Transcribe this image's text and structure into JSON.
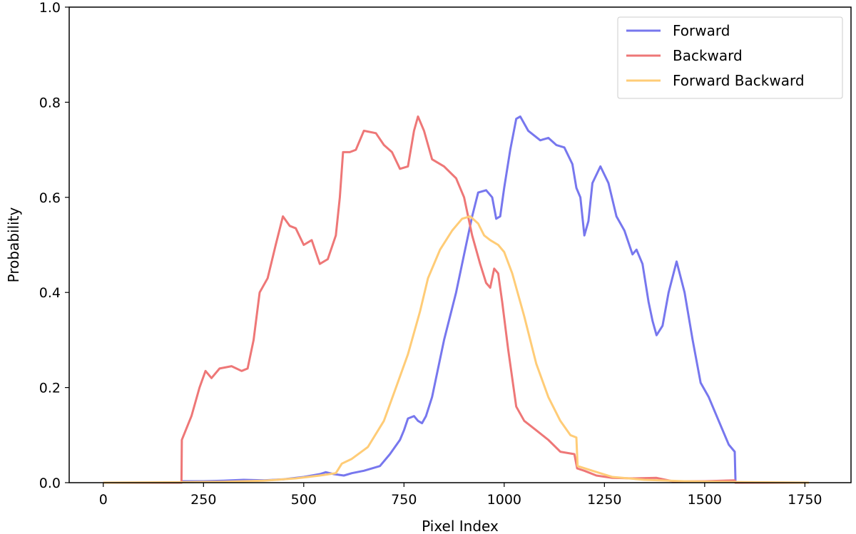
{
  "chart_data": {
    "type": "line",
    "title": "",
    "xlabel": "Pixel Index",
    "ylabel": "Probability",
    "xlim": [
      -85,
      1865
    ],
    "ylim": [
      0,
      1.0
    ],
    "xticks": [
      0,
      250,
      500,
      750,
      1000,
      1250,
      1500,
      1750
    ],
    "yticks": [
      0.0,
      0.2,
      0.4,
      0.6,
      0.8,
      1.0
    ],
    "xtick_labels": [
      "0",
      "250",
      "500",
      "750",
      "1000",
      "1250",
      "1500",
      "1750"
    ],
    "ytick_labels": [
      "0.0",
      "0.2",
      "0.4",
      "0.6",
      "0.8",
      "1.0"
    ],
    "grid": false,
    "legend_position": "top-right",
    "series": [
      {
        "name": "Forward",
        "color": "#7777ee",
        "points": [
          [
            0,
            0.0
          ],
          [
            195,
            0.0
          ],
          [
            196,
            0.003
          ],
          [
            250,
            0.003
          ],
          [
            300,
            0.004
          ],
          [
            350,
            0.006
          ],
          [
            400,
            0.005
          ],
          [
            450,
            0.007
          ],
          [
            500,
            0.012
          ],
          [
            540,
            0.018
          ],
          [
            555,
            0.022
          ],
          [
            575,
            0.018
          ],
          [
            600,
            0.015
          ],
          [
            620,
            0.02
          ],
          [
            650,
            0.025
          ],
          [
            690,
            0.035
          ],
          [
            715,
            0.06
          ],
          [
            740,
            0.09
          ],
          [
            750,
            0.11
          ],
          [
            760,
            0.135
          ],
          [
            775,
            0.14
          ],
          [
            785,
            0.13
          ],
          [
            795,
            0.125
          ],
          [
            805,
            0.14
          ],
          [
            820,
            0.18
          ],
          [
            850,
            0.3
          ],
          [
            880,
            0.4
          ],
          [
            900,
            0.48
          ],
          [
            920,
            0.56
          ],
          [
            935,
            0.61
          ],
          [
            955,
            0.615
          ],
          [
            970,
            0.6
          ],
          [
            980,
            0.555
          ],
          [
            990,
            0.56
          ],
          [
            1000,
            0.62
          ],
          [
            1015,
            0.7
          ],
          [
            1030,
            0.765
          ],
          [
            1040,
            0.77
          ],
          [
            1060,
            0.74
          ],
          [
            1090,
            0.72
          ],
          [
            1110,
            0.725
          ],
          [
            1130,
            0.71
          ],
          [
            1150,
            0.705
          ],
          [
            1170,
            0.67
          ],
          [
            1180,
            0.62
          ],
          [
            1190,
            0.6
          ],
          [
            1200,
            0.52
          ],
          [
            1210,
            0.55
          ],
          [
            1220,
            0.63
          ],
          [
            1240,
            0.665
          ],
          [
            1260,
            0.63
          ],
          [
            1280,
            0.56
          ],
          [
            1300,
            0.53
          ],
          [
            1320,
            0.48
          ],
          [
            1330,
            0.49
          ],
          [
            1345,
            0.46
          ],
          [
            1360,
            0.38
          ],
          [
            1370,
            0.34
          ],
          [
            1380,
            0.31
          ],
          [
            1395,
            0.33
          ],
          [
            1410,
            0.4
          ],
          [
            1430,
            0.465
          ],
          [
            1450,
            0.4
          ],
          [
            1470,
            0.3
          ],
          [
            1490,
            0.21
          ],
          [
            1510,
            0.18
          ],
          [
            1530,
            0.14
          ],
          [
            1560,
            0.08
          ],
          [
            1575,
            0.065
          ],
          [
            1577,
            0.0
          ],
          [
            1760,
            0.0
          ]
        ]
      },
      {
        "name": "Backward",
        "color": "#ee7777",
        "points": [
          [
            0,
            0.0
          ],
          [
            195,
            0.0
          ],
          [
            196,
            0.09
          ],
          [
            220,
            0.14
          ],
          [
            240,
            0.2
          ],
          [
            255,
            0.235
          ],
          [
            270,
            0.22
          ],
          [
            290,
            0.24
          ],
          [
            320,
            0.245
          ],
          [
            345,
            0.235
          ],
          [
            360,
            0.24
          ],
          [
            375,
            0.3
          ],
          [
            390,
            0.4
          ],
          [
            410,
            0.43
          ],
          [
            430,
            0.5
          ],
          [
            448,
            0.56
          ],
          [
            465,
            0.54
          ],
          [
            480,
            0.535
          ],
          [
            500,
            0.5
          ],
          [
            520,
            0.51
          ],
          [
            540,
            0.46
          ],
          [
            560,
            0.47
          ],
          [
            580,
            0.52
          ],
          [
            590,
            0.6
          ],
          [
            598,
            0.695
          ],
          [
            615,
            0.695
          ],
          [
            630,
            0.7
          ],
          [
            650,
            0.74
          ],
          [
            680,
            0.735
          ],
          [
            700,
            0.71
          ],
          [
            720,
            0.695
          ],
          [
            740,
            0.66
          ],
          [
            760,
            0.665
          ],
          [
            775,
            0.74
          ],
          [
            785,
            0.77
          ],
          [
            800,
            0.74
          ],
          [
            820,
            0.68
          ],
          [
            850,
            0.665
          ],
          [
            880,
            0.64
          ],
          [
            900,
            0.6
          ],
          [
            920,
            0.52
          ],
          [
            940,
            0.46
          ],
          [
            955,
            0.42
          ],
          [
            965,
            0.41
          ],
          [
            975,
            0.45
          ],
          [
            985,
            0.44
          ],
          [
            995,
            0.38
          ],
          [
            1010,
            0.28
          ],
          [
            1030,
            0.16
          ],
          [
            1050,
            0.13
          ],
          [
            1080,
            0.11
          ],
          [
            1110,
            0.09
          ],
          [
            1140,
            0.065
          ],
          [
            1175,
            0.06
          ],
          [
            1182,
            0.03
          ],
          [
            1200,
            0.025
          ],
          [
            1230,
            0.015
          ],
          [
            1270,
            0.01
          ],
          [
            1320,
            0.009
          ],
          [
            1380,
            0.01
          ],
          [
            1420,
            0.003
          ],
          [
            1500,
            0.003
          ],
          [
            1575,
            0.005
          ],
          [
            1577,
            0.0
          ],
          [
            1760,
            0.0
          ]
        ]
      },
      {
        "name": "Forward Backward",
        "color": "#ffcc77",
        "points": [
          [
            0,
            0.0
          ],
          [
            200,
            0.001
          ],
          [
            300,
            0.002
          ],
          [
            400,
            0.004
          ],
          [
            480,
            0.009
          ],
          [
            540,
            0.015
          ],
          [
            580,
            0.02
          ],
          [
            595,
            0.04
          ],
          [
            620,
            0.05
          ],
          [
            660,
            0.075
          ],
          [
            700,
            0.13
          ],
          [
            730,
            0.2
          ],
          [
            760,
            0.27
          ],
          [
            790,
            0.36
          ],
          [
            810,
            0.43
          ],
          [
            840,
            0.49
          ],
          [
            870,
            0.53
          ],
          [
            895,
            0.555
          ],
          [
            915,
            0.56
          ],
          [
            935,
            0.545
          ],
          [
            950,
            0.52
          ],
          [
            965,
            0.51
          ],
          [
            985,
            0.5
          ],
          [
            1000,
            0.485
          ],
          [
            1020,
            0.44
          ],
          [
            1050,
            0.35
          ],
          [
            1080,
            0.25
          ],
          [
            1110,
            0.18
          ],
          [
            1140,
            0.13
          ],
          [
            1165,
            0.1
          ],
          [
            1180,
            0.095
          ],
          [
            1183,
            0.035
          ],
          [
            1220,
            0.025
          ],
          [
            1270,
            0.012
          ],
          [
            1350,
            0.006
          ],
          [
            1450,
            0.003
          ],
          [
            1600,
            0.001
          ],
          [
            1760,
            0.0
          ]
        ]
      }
    ]
  }
}
